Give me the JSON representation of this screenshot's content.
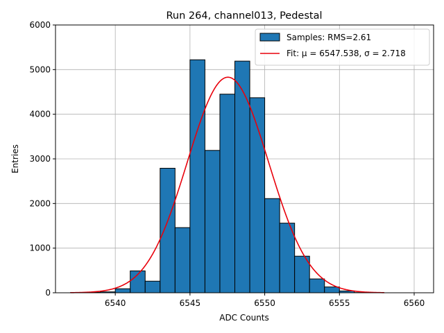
{
  "chart_data": {
    "type": "bar",
    "title": "Run 264, channel013, Pedestal",
    "xlabel": "ADC Counts",
    "ylabel": "Entries",
    "xlim": [
      6536,
      6561.3
    ],
    "ylim": [
      0,
      6000
    ],
    "xticks": [
      6540,
      6545,
      6550,
      6555,
      6560
    ],
    "yticks": [
      0,
      1000,
      2000,
      3000,
      4000,
      5000,
      6000
    ],
    "grid": true,
    "legend_position": "top-right",
    "histogram": {
      "name": "Samples: RMS=2.61",
      "color": "#1f77b4",
      "bin_edges": [
        6537,
        6538,
        6539,
        6540,
        6541,
        6542,
        6543,
        6544,
        6545,
        6546,
        6547,
        6548,
        6549,
        6550,
        6551,
        6552,
        6553,
        6554,
        6555,
        6556,
        6557,
        6558
      ],
      "counts": [
        5,
        10,
        20,
        90,
        490,
        260,
        2790,
        1460,
        5220,
        3190,
        4450,
        5190,
        4370,
        2110,
        1560,
        820,
        310,
        130,
        40,
        5,
        0
      ]
    },
    "fit": {
      "name": "Fit: μ = 6547.538, σ = 2.718",
      "color": "#e8000b",
      "mu": 6547.538,
      "sigma": 2.718,
      "amplitude": 4830,
      "x_range": [
        6537,
        6558
      ]
    }
  }
}
